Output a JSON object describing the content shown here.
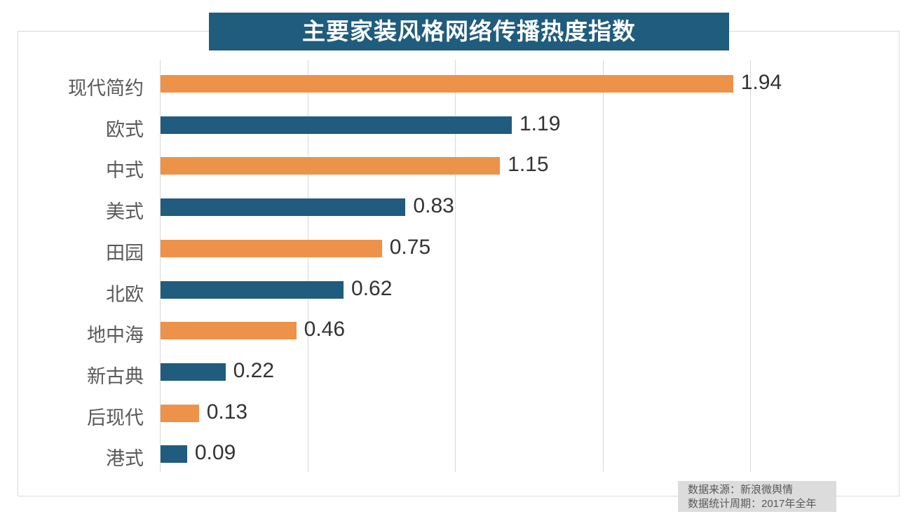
{
  "title": {
    "text": "主要家装风格网络传播热度指数",
    "bg_color": "#1F5C7D",
    "text_color": "#FFFFFF"
  },
  "chart_data": {
    "type": "bar",
    "orientation": "horizontal",
    "title": "主要家装风格网络传播热度指数",
    "categories": [
      "现代简约",
      "欧式",
      "中式",
      "美式",
      "田园",
      "北欧",
      "地中海",
      "新古典",
      "后现代",
      "港式"
    ],
    "values": [
      1.94,
      1.19,
      1.15,
      0.83,
      0.75,
      0.62,
      0.46,
      0.22,
      0.13,
      0.09
    ],
    "value_labels": [
      "1.94",
      "1.19",
      "1.15",
      "0.83",
      "0.75",
      "0.62",
      "0.46",
      "0.22",
      "0.13",
      "0.09"
    ],
    "xlabel": "",
    "ylabel": "",
    "xlim": [
      0,
      2.5
    ],
    "gridline_values": [
      0,
      0.5,
      1.0,
      1.5,
      2.0
    ],
    "grid": true,
    "legend": "none",
    "bar_colors_alternating": [
      "#ED9249",
      "#1F5C7D"
    ],
    "category_label_color": "#595959",
    "value_label_color": "#333333",
    "gridline_color": "#D9D9D9"
  },
  "source_note": {
    "line1": "数据来源：新浪微舆情",
    "line2": "数据统计周期：2017年全年",
    "bg_color": "#DCDCDC",
    "text_color": "#595959"
  }
}
